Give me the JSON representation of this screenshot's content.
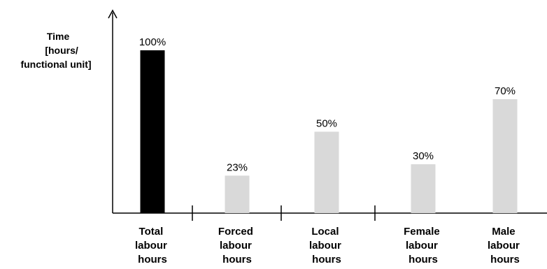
{
  "chart_data": {
    "type": "bar",
    "ylabel_lines": [
      "Time",
      "[hours/",
      "functional unit]"
    ],
    "categories": [
      [
        "Total",
        "labour",
        "hours"
      ],
      [
        "Forced",
        "labour",
        "hours"
      ],
      [
        "Local",
        "labour",
        "hours"
      ],
      [
        "Female",
        "labour",
        "hours"
      ],
      [
        "Male",
        "labour",
        "hours"
      ]
    ],
    "values": [
      100,
      23,
      50,
      30,
      70
    ],
    "data_labels": [
      "100%",
      "23%",
      "50%",
      "30%",
      "70%"
    ],
    "unit": "%",
    "ylim": [
      0,
      100
    ],
    "bar_colors": [
      "#000000",
      "#d9d9d9",
      "#d9d9d9",
      "#d9d9d9",
      "#d9d9d9"
    ],
    "grid": false,
    "legend": "none",
    "y_tick_labels": false,
    "group_separators_after": [
      0,
      2
    ]
  }
}
